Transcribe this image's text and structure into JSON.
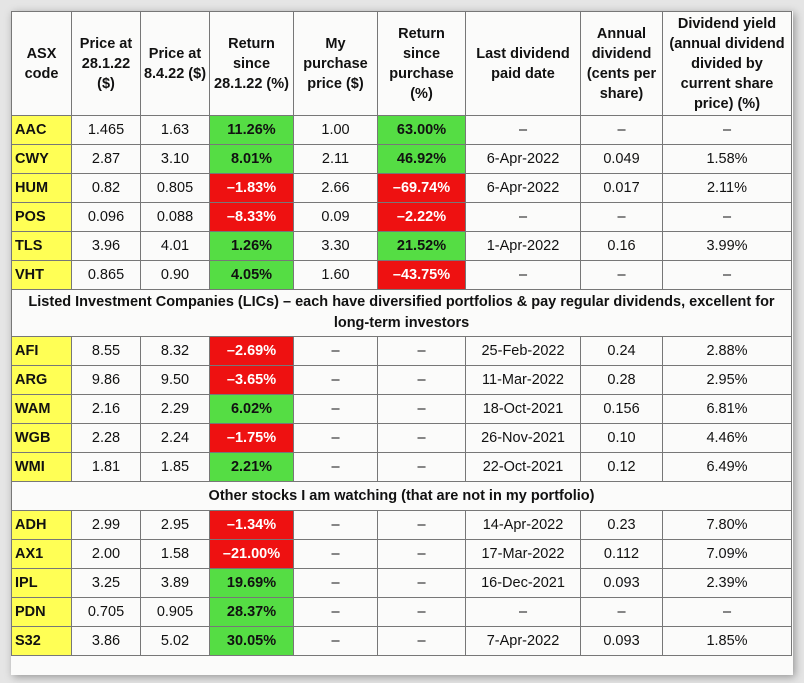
{
  "colors": {
    "positive": "#55dd44",
    "negative": "#ee1111",
    "code_highlight": "#ffff55"
  },
  "headers": [
    "ASX code",
    "Price at 28.1.22 ($)",
    "Price at 8.4.22 ($)",
    "Return since 28.1.22 (%)",
    "My purchase price ($)",
    "Return since purchase (%)",
    "Last dividend paid date",
    "Annual dividend (cents per share)",
    "Dividend yield (annual dividend divided by current share price) (%)"
  ],
  "sections": [
    {
      "title": "",
      "rows": [
        {
          "code": "AAC",
          "p1": "1.465",
          "p2": "1.63",
          "ret": "11.26%",
          "ret_sign": "pos",
          "buy": "1.00",
          "ret_buy": "63.00%",
          "ret_buy_sign": "pos",
          "div_date": "–",
          "div": "–",
          "yield": "–"
        },
        {
          "code": "CWY",
          "p1": "2.87",
          "p2": "3.10",
          "ret": "8.01%",
          "ret_sign": "pos",
          "buy": "2.11",
          "ret_buy": "46.92%",
          "ret_buy_sign": "pos",
          "div_date": "6-Apr-2022",
          "div": "0.049",
          "yield": "1.58%"
        },
        {
          "code": "HUM",
          "p1": "0.82",
          "p2": "0.805",
          "ret": "–1.83%",
          "ret_sign": "neg",
          "buy": "2.66",
          "ret_buy": "–69.74%",
          "ret_buy_sign": "neg",
          "div_date": "6-Apr-2022",
          "div": "0.017",
          "yield": "2.11%"
        },
        {
          "code": "POS",
          "p1": "0.096",
          "p2": "0.088",
          "ret": "–8.33%",
          "ret_sign": "neg",
          "buy": "0.09",
          "ret_buy": "–2.22%",
          "ret_buy_sign": "neg",
          "div_date": "–",
          "div": "–",
          "yield": "–"
        },
        {
          "code": "TLS",
          "p1": "3.96",
          "p2": "4.01",
          "ret": "1.26%",
          "ret_sign": "pos",
          "buy": "3.30",
          "ret_buy": "21.52%",
          "ret_buy_sign": "pos",
          "div_date": "1-Apr-2022",
          "div": "0.16",
          "yield": "3.99%"
        },
        {
          "code": "VHT",
          "p1": "0.865",
          "p2": "0.90",
          "ret": "4.05%",
          "ret_sign": "pos",
          "buy": "1.60",
          "ret_buy": "–43.75%",
          "ret_buy_sign": "neg",
          "div_date": "–",
          "div": "–",
          "yield": "–"
        }
      ]
    },
    {
      "title": "Listed Investment Companies (LICs) – each have diversified portfolios & pay regular dividends, excellent for long-term investors",
      "rows": [
        {
          "code": "AFI",
          "p1": "8.55",
          "p2": "8.32",
          "ret": "–2.69%",
          "ret_sign": "neg",
          "buy": "–",
          "ret_buy": "–",
          "ret_buy_sign": "",
          "div_date": "25-Feb-2022",
          "div": "0.24",
          "yield": "2.88%"
        },
        {
          "code": "ARG",
          "p1": "9.86",
          "p2": "9.50",
          "ret": "–3.65%",
          "ret_sign": "neg",
          "buy": "–",
          "ret_buy": "–",
          "ret_buy_sign": "",
          "div_date": "11-Mar-2022",
          "div": "0.28",
          "yield": "2.95%"
        },
        {
          "code": "WAM",
          "p1": "2.16",
          "p2": "2.29",
          "ret": "6.02%",
          "ret_sign": "pos",
          "buy": "–",
          "ret_buy": "–",
          "ret_buy_sign": "",
          "div_date": "18-Oct-2021",
          "div": "0.156",
          "yield": "6.81%"
        },
        {
          "code": "WGB",
          "p1": "2.28",
          "p2": "2.24",
          "ret": "–1.75%",
          "ret_sign": "neg",
          "buy": "–",
          "ret_buy": "–",
          "ret_buy_sign": "",
          "div_date": "26-Nov-2021",
          "div": "0.10",
          "yield": "4.46%"
        },
        {
          "code": "WMI",
          "p1": "1.81",
          "p2": "1.85",
          "ret": "2.21%",
          "ret_sign": "pos",
          "buy": "–",
          "ret_buy": "–",
          "ret_buy_sign": "",
          "div_date": "22-Oct-2021",
          "div": "0.12",
          "yield": "6.49%"
        }
      ]
    },
    {
      "title": "Other stocks I am watching (that are not in my portfolio)",
      "rows": [
        {
          "code": "ADH",
          "p1": "2.99",
          "p2": "2.95",
          "ret": "–1.34%",
          "ret_sign": "neg",
          "buy": "–",
          "ret_buy": "–",
          "ret_buy_sign": "",
          "div_date": "14-Apr-2022",
          "div": "0.23",
          "yield": "7.80%"
        },
        {
          "code": "AX1",
          "p1": "2.00",
          "p2": "1.58",
          "ret": "–21.00%",
          "ret_sign": "neg",
          "buy": "–",
          "ret_buy": "–",
          "ret_buy_sign": "",
          "div_date": "17-Mar-2022",
          "div": "0.112",
          "yield": "7.09%"
        },
        {
          "code": "IPL",
          "p1": "3.25",
          "p2": "3.89",
          "ret": "19.69%",
          "ret_sign": "pos",
          "buy": "–",
          "ret_buy": "–",
          "ret_buy_sign": "",
          "div_date": "16-Dec-2021",
          "div": "0.093",
          "yield": "2.39%"
        },
        {
          "code": "PDN",
          "p1": "0.705",
          "p2": "0.905",
          "ret": "28.37%",
          "ret_sign": "pos",
          "buy": "–",
          "ret_buy": "–",
          "ret_buy_sign": "",
          "div_date": "–",
          "div": "–",
          "yield": "–"
        },
        {
          "code": "S32",
          "p1": "3.86",
          "p2": "5.02",
          "ret": "30.05%",
          "ret_sign": "pos",
          "buy": "–",
          "ret_buy": "–",
          "ret_buy_sign": "",
          "div_date": "7-Apr-2022",
          "div": "0.093",
          "yield": "1.85%"
        }
      ]
    }
  ]
}
